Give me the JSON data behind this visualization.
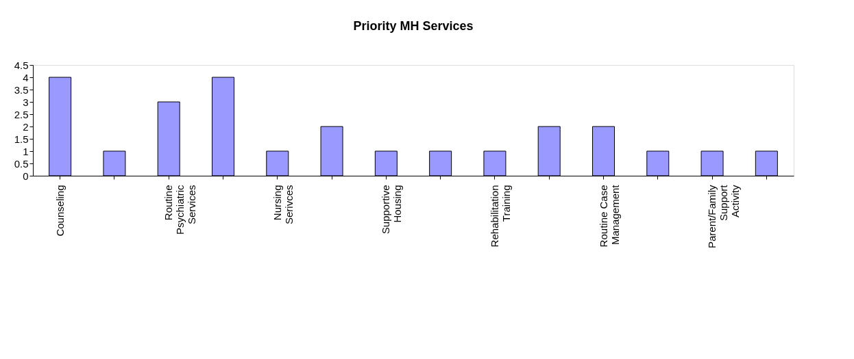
{
  "chart_data": {
    "type": "bar",
    "title": "Priority MH Services",
    "categories": [
      "Counseling",
      null,
      "Routine Psychiatric Services",
      null,
      "Nursing Serivces",
      null,
      "Supportive Housing",
      null,
      "Rehabilitation Training",
      null,
      "Routine Case Management",
      null,
      "Parent/Family Support Activity",
      null
    ],
    "values": [
      4,
      1,
      3,
      4,
      1,
      2,
      1,
      1,
      1,
      2,
      2,
      1,
      1,
      1
    ],
    "color": "#9999ff",
    "ylim": [
      0,
      4.5
    ],
    "yticks": [
      0,
      0.5,
      1,
      1.5,
      2,
      2.5,
      3,
      3.5,
      4,
      4.5
    ],
    "grid": false,
    "legend": false
  }
}
